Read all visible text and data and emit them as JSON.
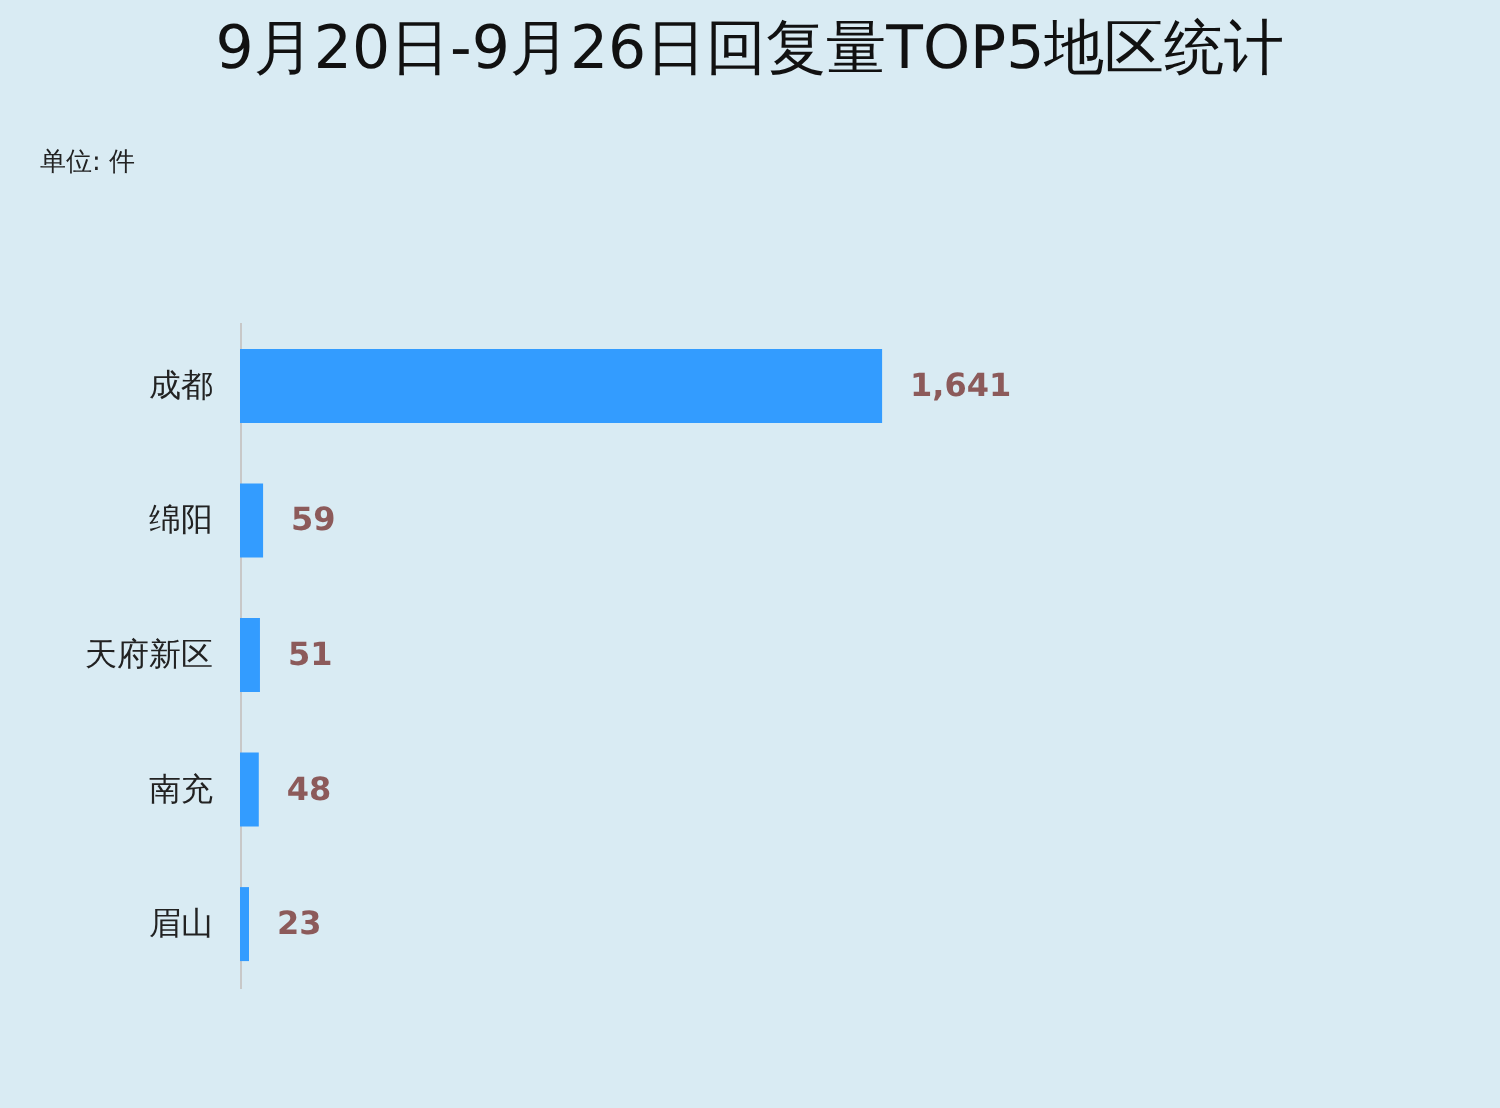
{
  "chart_data": {
    "type": "bar",
    "orientation": "horizontal",
    "title": "9月20日-9月26日回复量TOP5地区统计",
    "subtitle": "单位: 件",
    "categories": [
      "成都",
      "绵阳",
      "天府新区",
      "南充",
      "眉山"
    ],
    "values": [
      1641,
      59,
      51,
      48,
      23
    ],
    "value_labels": [
      "1,641",
      "59",
      "51",
      "48",
      "23"
    ],
    "color": "#339cff"
  }
}
